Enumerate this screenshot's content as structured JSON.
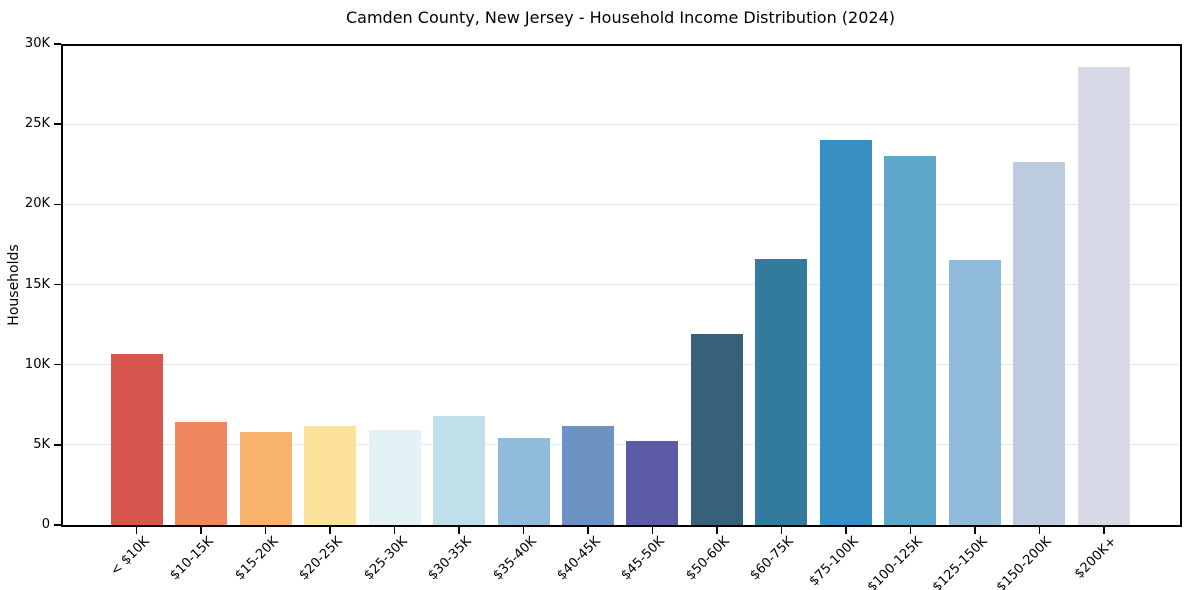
{
  "figure": {
    "title": "Camden County, New Jersey - Household Income Distribution (2024)"
  },
  "chart_data": {
    "type": "bar",
    "title": "Camden County, New Jersey - Household Income Distribution (2024)",
    "xlabel": "",
    "ylabel": "Households",
    "ylim": [
      0,
      30000
    ],
    "grid": "horizontal-light",
    "legend": "none",
    "categories": [
      "< $10K",
      "$10-15K",
      "$15-20K",
      "$20-25K",
      "$25-30K",
      "$30-35K",
      "$35-40K",
      "$40-45K",
      "$45-50K",
      "$50-60K",
      "$60-75K",
      "$75-100K",
      "$100-125K",
      "$125-150K",
      "$150-200K",
      "$200K+"
    ],
    "values": [
      10650,
      6400,
      5800,
      6200,
      5950,
      6800,
      5450,
      6150,
      5250,
      11900,
      16600,
      24000,
      23000,
      16550,
      22650,
      28550
    ],
    "bar_colors": [
      "#d9564f",
      "#f0875f",
      "#fab36c",
      "#fde29b",
      "#e3f2f4",
      "#bfe0ea",
      "#90bcdc",
      "#6c92c4",
      "#5c5ca6",
      "#366178",
      "#337a9f",
      "#388fc3",
      "#5da7cb",
      "#91bbda",
      "#bccbdf",
      "#d8d9e6"
    ],
    "y_ticks": [
      {
        "value": 0,
        "label": "0"
      },
      {
        "value": 5000,
        "label": "5K"
      },
      {
        "value": 10000,
        "label": "10K"
      },
      {
        "value": 15000,
        "label": "15K"
      },
      {
        "value": 20000,
        "label": "20K"
      },
      {
        "value": 25000,
        "label": "25K"
      },
      {
        "value": 30000,
        "label": "30K"
      }
    ]
  }
}
